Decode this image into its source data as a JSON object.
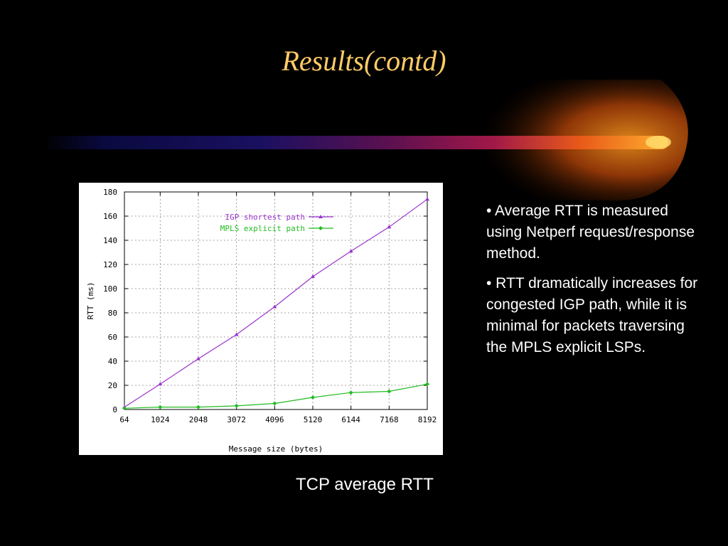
{
  "slide": {
    "title": "Results(contd)",
    "caption": "TCP average RTT",
    "bullets": [
      "• Average RTT is measured using Netperf request/response method.",
      "• RTT dramatically increases for congested IGP path, while it is minimal for packets traversing the MPLS explicit LSPs."
    ]
  },
  "colors": {
    "background": "#000000",
    "title": "#ffcc66",
    "igp": "#9933cc",
    "mpls": "#22bb22"
  },
  "chart_data": {
    "type": "line",
    "xlabel": "Message size (bytes)",
    "ylabel": "RTT (ms)",
    "x": [
      64,
      1024,
      2048,
      3072,
      4096,
      5120,
      6144,
      7168,
      8192
    ],
    "xticks": [
      64,
      1024,
      2048,
      3072,
      4096,
      5120,
      6144,
      7168,
      8192
    ],
    "yticks": [
      0,
      20,
      40,
      60,
      80,
      100,
      120,
      140,
      160,
      180
    ],
    "xlim": [
      64,
      8192
    ],
    "ylim": [
      0,
      180
    ],
    "grid": true,
    "legend_position": "top-center",
    "series": [
      {
        "name": "IGP shortest path",
        "values": [
          2,
          21,
          42,
          62,
          85,
          110,
          131,
          151,
          174
        ]
      },
      {
        "name": "MPLS explicit path",
        "values": [
          1,
          2,
          2,
          3,
          5,
          10,
          14,
          15,
          21
        ]
      }
    ]
  }
}
